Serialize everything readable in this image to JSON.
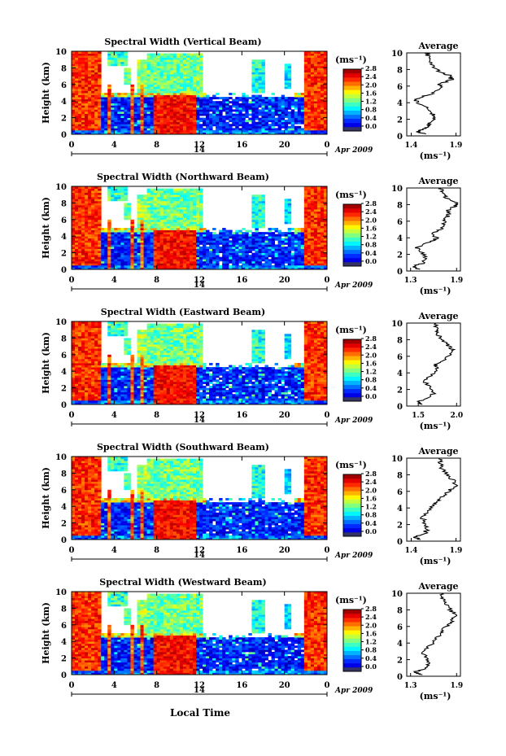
{
  "figure": {
    "y_axis_label": "Height (km)",
    "x_axis_label": "Local Time",
    "date_label": "Apr 2009",
    "date_day": "14",
    "unit_label": "(ms⁻¹)",
    "avg_title": "Average",
    "avg_unit": "(ms⁻¹)"
  },
  "chart_data": [
    {
      "type": "heatmap",
      "title": "Spectral Width (Vertical Beam)",
      "x_ticks": [
        "0",
        "4",
        "8",
        "12",
        "16",
        "20",
        "0"
      ],
      "y_ticks": [
        "0",
        "2",
        "4",
        "6",
        "8",
        "10"
      ],
      "xlim_hours": [
        0,
        24
      ],
      "ylim_km": [
        0,
        10
      ],
      "colorbar_ticks": [
        "0.0",
        "0.4",
        "0.8",
        "1.2",
        "1.6",
        "2.0",
        "2.4",
        "2.8"
      ],
      "colorbar_range": [
        0.0,
        3.0
      ],
      "avg_profile": {
        "x_ticks": [
          "1.4",
          "1.9"
        ],
        "xlim": [
          1.35,
          1.95
        ],
        "points": [
          [
            1.56,
            0.2
          ],
          [
            1.47,
            0.5
          ],
          [
            1.52,
            0.8
          ],
          [
            1.58,
            1.0
          ],
          [
            1.6,
            1.5
          ],
          [
            1.64,
            2.0
          ],
          [
            1.65,
            2.5
          ],
          [
            1.62,
            3.0
          ],
          [
            1.55,
            3.5
          ],
          [
            1.45,
            4.2
          ],
          [
            1.48,
            4.6
          ],
          [
            1.6,
            5.0
          ],
          [
            1.74,
            5.6
          ],
          [
            1.72,
            6.2
          ],
          [
            1.85,
            6.8
          ],
          [
            1.82,
            7.3
          ],
          [
            1.7,
            7.8
          ],
          [
            1.64,
            8.5
          ],
          [
            1.6,
            9.0
          ],
          [
            1.59,
            9.6
          ],
          [
            1.58,
            10.0
          ]
        ]
      }
    },
    {
      "type": "heatmap",
      "title": "Spectral Width (Northward Beam)",
      "x_ticks": [
        "0",
        "4",
        "8",
        "12",
        "16",
        "20",
        "0"
      ],
      "y_ticks": [
        "0",
        "2",
        "4",
        "6",
        "8",
        "10"
      ],
      "xlim_hours": [
        0,
        24
      ],
      "ylim_km": [
        0,
        10
      ],
      "colorbar_ticks": [
        "0.0",
        "0.4",
        "0.8",
        "1.2",
        "1.6",
        "2.0",
        "2.4",
        "2.8"
      ],
      "colorbar_range": [
        0.0,
        3.0
      ],
      "avg_profile": {
        "x_ticks": [
          "1.3",
          "1.9"
        ],
        "xlim": [
          1.25,
          1.95
        ],
        "points": [
          [
            1.42,
            0.2
          ],
          [
            1.32,
            0.5
          ],
          [
            1.45,
            0.9
          ],
          [
            1.5,
            1.5
          ],
          [
            1.45,
            2.2
          ],
          [
            1.38,
            2.8
          ],
          [
            1.55,
            3.5
          ],
          [
            1.65,
            4.0
          ],
          [
            1.55,
            4.5
          ],
          [
            1.7,
            5.0
          ],
          [
            1.72,
            5.6
          ],
          [
            1.75,
            6.2
          ],
          [
            1.8,
            6.8
          ],
          [
            1.78,
            7.3
          ],
          [
            1.88,
            7.8
          ],
          [
            1.9,
            8.2
          ],
          [
            1.76,
            8.8
          ],
          [
            1.72,
            9.4
          ],
          [
            1.7,
            10.0
          ]
        ]
      }
    },
    {
      "type": "heatmap",
      "title": "Spectral Width (Eastward Beam)",
      "x_ticks": [
        "0",
        "4",
        "8",
        "12",
        "16",
        "20",
        "0"
      ],
      "y_ticks": [
        "0",
        "2",
        "4",
        "6",
        "8",
        "10"
      ],
      "xlim_hours": [
        0,
        24
      ],
      "ylim_km": [
        0,
        10
      ],
      "colorbar_ticks": [
        "0.0",
        "0.4",
        "0.8",
        "1.2",
        "1.6",
        "2.0",
        "2.4",
        "2.8"
      ],
      "colorbar_range": [
        0.0,
        3.0
      ],
      "avg_profile": {
        "x_ticks": [
          "1.5",
          "2.0"
        ],
        "xlim": [
          1.35,
          2.05
        ],
        "points": [
          [
            1.55,
            0.2
          ],
          [
            1.48,
            0.5
          ],
          [
            1.62,
            0.9
          ],
          [
            1.7,
            1.5
          ],
          [
            1.65,
            2.2
          ],
          [
            1.58,
            3.0
          ],
          [
            1.68,
            3.8
          ],
          [
            1.75,
            4.5
          ],
          [
            1.72,
            5.0
          ],
          [
            1.85,
            5.5
          ],
          [
            1.9,
            6.2
          ],
          [
            1.94,
            6.8
          ],
          [
            1.88,
            7.4
          ],
          [
            1.8,
            8.0
          ],
          [
            1.76,
            8.6
          ],
          [
            1.74,
            9.2
          ],
          [
            1.73,
            10.0
          ]
        ]
      }
    },
    {
      "type": "heatmap",
      "title": "Spectral Width (Southward Beam)",
      "x_ticks": [
        "0",
        "4",
        "8",
        "12",
        "16",
        "20",
        "0"
      ],
      "y_ticks": [
        "0",
        "2",
        "4",
        "6",
        "8",
        "10"
      ],
      "xlim_hours": [
        0,
        24
      ],
      "ylim_km": [
        0,
        10
      ],
      "colorbar_ticks": [
        "0.0",
        "0.4",
        "0.8",
        "1.2",
        "1.6",
        "2.0",
        "2.4",
        "2.8"
      ],
      "colorbar_range": [
        0.0,
        3.0
      ],
      "avg_profile": {
        "x_ticks": [
          "1.4",
          "1.9"
        ],
        "xlim": [
          1.35,
          1.95
        ],
        "points": [
          [
            1.5,
            0.2
          ],
          [
            1.44,
            0.5
          ],
          [
            1.55,
            0.9
          ],
          [
            1.58,
            1.5
          ],
          [
            1.55,
            2.2
          ],
          [
            1.52,
            3.0
          ],
          [
            1.6,
            3.8
          ],
          [
            1.68,
            4.5
          ],
          [
            1.7,
            5.0
          ],
          [
            1.78,
            5.6
          ],
          [
            1.84,
            6.2
          ],
          [
            1.9,
            6.8
          ],
          [
            1.86,
            7.4
          ],
          [
            1.8,
            8.0
          ],
          [
            1.74,
            8.8
          ],
          [
            1.72,
            9.4
          ],
          [
            1.71,
            10.0
          ]
        ]
      }
    },
    {
      "type": "heatmap",
      "title": "Spectral Width (Westward Beam)",
      "x_ticks": [
        "0",
        "4",
        "8",
        "12",
        "16",
        "20",
        "0"
      ],
      "y_ticks": [
        "0",
        "2",
        "4",
        "6",
        "8",
        "10"
      ],
      "xlim_hours": [
        0,
        24
      ],
      "ylim_km": [
        0,
        10
      ],
      "colorbar_ticks": [
        "0.0",
        "0.4",
        "0.8",
        "1.2",
        "1.6",
        "2.0",
        "2.4",
        "2.8"
      ],
      "colorbar_range": [
        0.0,
        3.0
      ],
      "avg_profile": {
        "x_ticks": [
          "1.3",
          "1.9"
        ],
        "xlim": [
          1.25,
          1.95
        ],
        "points": [
          [
            1.45,
            0.2
          ],
          [
            1.35,
            0.5
          ],
          [
            1.48,
            0.9
          ],
          [
            1.55,
            1.5
          ],
          [
            1.5,
            2.2
          ],
          [
            1.45,
            3.0
          ],
          [
            1.58,
            3.8
          ],
          [
            1.62,
            4.5
          ],
          [
            1.68,
            5.0
          ],
          [
            1.72,
            5.6
          ],
          [
            1.8,
            6.2
          ],
          [
            1.85,
            6.8
          ],
          [
            1.88,
            7.4
          ],
          [
            1.82,
            8.0
          ],
          [
            1.76,
            8.8
          ],
          [
            1.72,
            9.4
          ],
          [
            1.7,
            10.0
          ]
        ]
      }
    }
  ]
}
